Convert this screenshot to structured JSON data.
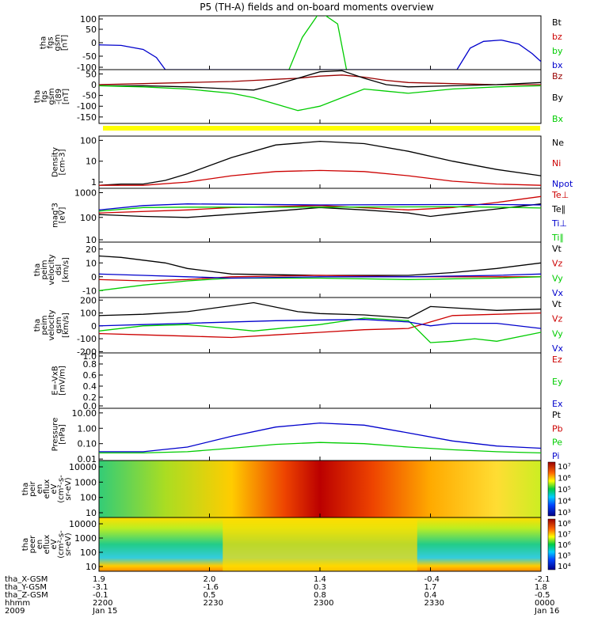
{
  "title": "P5 (TH-A) fields and on-board moments overview",
  "colors": {
    "black": "#000000",
    "red": "#cc0000",
    "darkred": "#990000",
    "green": "#00cc00",
    "blue": "#0000cc",
    "yellow": "#ffff00"
  },
  "chart_data": [
    {
      "type": "line",
      "panel_id": "fgs",
      "ylabel_lines": [
        "tha",
        "fgs",
        "gsm",
        "[nT]"
      ],
      "ylim": [
        -100,
        100
      ],
      "ticks": [
        "100",
        "50",
        "0",
        "-50",
        "-100"
      ],
      "tick_values": [
        100,
        50,
        0,
        -50,
        -100
      ],
      "series": [
        {
          "name": "Bt",
          "color": "#000000",
          "x": [],
          "y": []
        },
        {
          "name": "bz",
          "color": "#cc0000",
          "x": [],
          "y": []
        },
        {
          "name": "by",
          "color": "#00cc00",
          "x": [
            0.43,
            0.46,
            0.5,
            0.54,
            0.56
          ],
          "y": [
            -100,
            20,
            115,
            70,
            -100
          ]
        },
        {
          "name": "bx",
          "color": "#0000cc",
          "x": [
            0.0,
            0.05,
            0.1,
            0.13,
            0.15,
            0.81,
            0.84,
            0.87,
            0.91,
            0.95,
            0.98,
            1.0
          ],
          "y": [
            -8,
            -10,
            -25,
            -55,
            -100,
            -100,
            -20,
            5,
            10,
            -5,
            -40,
            -70
          ]
        }
      ]
    },
    {
      "type": "line",
      "panel_id": "fgs-dsl",
      "ylabel_lines": [
        "tha",
        "fgs",
        "gsm",
        "-(89",
        "[nT]"
      ],
      "ylim": [
        -180,
        70
      ],
      "ticks": [
        "50",
        "0",
        "-50",
        "-100",
        "-150"
      ],
      "tick_values": [
        50,
        0,
        -50,
        -100,
        -150
      ],
      "series": [
        {
          "name": "Bz",
          "color": "#990000",
          "x": [
            0.0,
            0.1,
            0.2,
            0.3,
            0.35,
            0.4,
            0.45,
            0.5,
            0.55,
            0.6,
            0.65,
            0.7,
            0.8,
            0.9,
            1.0
          ],
          "y": [
            0,
            5,
            10,
            15,
            20,
            25,
            30,
            40,
            45,
            35,
            20,
            10,
            5,
            0,
            0
          ]
        },
        {
          "name": "By",
          "color": "#000000",
          "x": [
            0.0,
            0.1,
            0.2,
            0.3,
            0.35,
            0.4,
            0.45,
            0.5,
            0.55,
            0.6,
            0.65,
            0.7,
            0.8,
            0.9,
            1.0
          ],
          "y": [
            -5,
            -5,
            -10,
            -20,
            -25,
            0,
            30,
            60,
            65,
            30,
            0,
            -10,
            -5,
            0,
            10
          ]
        },
        {
          "name": "Bx",
          "color": "#00cc00",
          "x": [
            0.0,
            0.1,
            0.2,
            0.3,
            0.35,
            0.4,
            0.45,
            0.5,
            0.55,
            0.6,
            0.65,
            0.7,
            0.8,
            0.9,
            1.0
          ],
          "y": [
            -5,
            -10,
            -20,
            -40,
            -60,
            -90,
            -120,
            -100,
            -60,
            -20,
            -30,
            -40,
            -20,
            -10,
            -5
          ]
        }
      ]
    },
    {
      "type": "line",
      "panel_id": "density",
      "log": true,
      "ylabel_lines": [
        "Density",
        "[cm-3]"
      ],
      "ylim": [
        0.5,
        160
      ],
      "ticks": [
        "100",
        "10",
        "1"
      ],
      "tick_values": [
        100,
        10,
        1
      ],
      "series": [
        {
          "name": "Ne",
          "color": "#000000",
          "x": [
            0.0,
            0.05,
            0.1,
            0.15,
            0.2,
            0.3,
            0.4,
            0.5,
            0.6,
            0.7,
            0.8,
            0.9,
            1.0
          ],
          "y": [
            0.7,
            0.8,
            0.8,
            1.2,
            2.5,
            15,
            60,
            90,
            70,
            30,
            10,
            4,
            2
          ]
        },
        {
          "name": "Ni",
          "color": "#cc0000",
          "x": [
            0.0,
            0.1,
            0.2,
            0.3,
            0.4,
            0.5,
            0.6,
            0.7,
            0.8,
            0.9,
            1.0
          ],
          "y": [
            0.7,
            0.7,
            1.0,
            2.0,
            3.2,
            3.6,
            3.2,
            2.0,
            1.1,
            0.8,
            0.7
          ]
        },
        {
          "name": "Npot",
          "color": "#0000cc",
          "x": [],
          "y": []
        }
      ]
    },
    {
      "type": "line",
      "panel_id": "temperature",
      "log": true,
      "ylabel_lines": [
        "mag3",
        "[eV]"
      ],
      "ylim": [
        10,
        1500
      ],
      "ticks": [
        "1000",
        "100",
        "10"
      ],
      "tick_values": [
        1000,
        100,
        10
      ],
      "series": [
        {
          "name": "Te⊥",
          "color": "#cc0000",
          "x": [
            0.0,
            0.2,
            0.3,
            0.5,
            0.7,
            0.8,
            0.9,
            1.0
          ],
          "y": [
            150,
            200,
            250,
            300,
            200,
            250,
            400,
            700
          ]
        },
        {
          "name": "Te∥",
          "color": "#000000",
          "x": [
            0.0,
            0.1,
            0.2,
            0.4,
            0.5,
            0.6,
            0.7,
            0.75,
            0.8,
            0.9,
            1.0
          ],
          "y": [
            130,
            110,
            100,
            180,
            250,
            200,
            150,
            110,
            140,
            220,
            350
          ]
        },
        {
          "name": "Ti⊥",
          "color": "#0000cc",
          "x": [
            0.0,
            0.1,
            0.2,
            0.5,
            0.8,
            0.9,
            1.0
          ],
          "y": [
            200,
            300,
            350,
            320,
            330,
            330,
            320
          ]
        },
        {
          "name": "Ti∥",
          "color": "#00cc00",
          "x": [
            0.0,
            0.1,
            0.2,
            0.5,
            0.8,
            0.9,
            1.0
          ],
          "y": [
            180,
            250,
            260,
            260,
            270,
            260,
            240
          ]
        }
      ]
    },
    {
      "type": "line",
      "panel_id": "peim-velocity-dsl",
      "ylabel_lines": [
        "tha",
        "peim",
        "velocity",
        "dsl",
        "[km/s]"
      ],
      "ylim": [
        -15,
        25
      ],
      "ticks": [
        "20",
        "10",
        "0",
        "-10"
      ],
      "tick_values": [
        20,
        10,
        0,
        -10
      ],
      "series": [
        {
          "name": "Vt",
          "color": "#000000",
          "x": [
            0.0,
            0.05,
            0.1,
            0.15,
            0.2,
            0.3,
            0.5,
            0.7,
            0.8,
            0.9,
            1.0
          ],
          "y": [
            15,
            14,
            12,
            10,
            6,
            2,
            1,
            1,
            3,
            6,
            10
          ]
        },
        {
          "name": "Vz",
          "color": "#cc0000",
          "x": [
            0.0,
            0.1,
            0.2,
            0.3,
            0.5,
            0.7,
            0.9,
            1.0
          ],
          "y": [
            -2,
            -3,
            -2,
            0,
            1,
            0,
            0,
            0
          ]
        },
        {
          "name": "Vy",
          "color": "#00cc00",
          "x": [
            0.0,
            0.1,
            0.2,
            0.3,
            0.5,
            0.7,
            0.9,
            1.0
          ],
          "y": [
            -10,
            -6,
            -3,
            -1,
            -1,
            -2,
            -1,
            0
          ]
        },
        {
          "name": "Vx",
          "color": "#0000cc",
          "x": [
            0.0,
            0.1,
            0.2,
            0.3,
            0.5,
            0.7,
            0.9,
            1.0
          ],
          "y": [
            2,
            1,
            0,
            -1,
            0,
            0,
            1,
            2
          ]
        }
      ]
    },
    {
      "type": "line",
      "panel_id": "peim-velocity-gsm",
      "ylabel_lines": [
        "tha",
        "peim",
        "velocity",
        "gsm",
        "[km/s]"
      ],
      "ylim": [
        -210,
        220
      ],
      "ticks": [
        "200",
        "100",
        "0",
        "-100",
        "-200"
      ],
      "tick_values": [
        200,
        100,
        0,
        -100,
        -200
      ],
      "series": [
        {
          "name": "Vt",
          "color": "#000000",
          "x": [
            0.0,
            0.1,
            0.2,
            0.35,
            0.45,
            0.5,
            0.6,
            0.7,
            0.75,
            0.8,
            0.9,
            1.0
          ],
          "y": [
            80,
            90,
            110,
            180,
            110,
            95,
            85,
            60,
            150,
            140,
            120,
            130
          ]
        },
        {
          "name": "Vz",
          "color": "#cc0000",
          "x": [
            0.0,
            0.1,
            0.2,
            0.3,
            0.4,
            0.5,
            0.6,
            0.7,
            0.75,
            0.8,
            0.9,
            1.0
          ],
          "y": [
            -60,
            -70,
            -80,
            -90,
            -70,
            -50,
            -30,
            -20,
            30,
            80,
            90,
            100
          ]
        },
        {
          "name": "Vy",
          "color": "#00cc00",
          "x": [
            0.0,
            0.1,
            0.2,
            0.35,
            0.5,
            0.6,
            0.7,
            0.75,
            0.8,
            0.85,
            0.9,
            1.0
          ],
          "y": [
            -40,
            0,
            10,
            -40,
            10,
            60,
            40,
            -130,
            -120,
            -100,
            -120,
            -50
          ]
        },
        {
          "name": "Vx",
          "color": "#0000cc",
          "x": [
            0.0,
            0.1,
            0.2,
            0.4,
            0.6,
            0.7,
            0.75,
            0.8,
            0.9,
            1.0
          ],
          "y": [
            0,
            10,
            20,
            40,
            50,
            30,
            0,
            20,
            20,
            -20
          ]
        }
      ]
    },
    {
      "type": "line",
      "panel_id": "efield",
      "ylabel_lines": [
        "E=-VxB",
        "[mV/m]"
      ],
      "ylim": [
        0,
        1
      ],
      "ticks": [
        "1.0",
        "0.8",
        "0.6",
        "0.4",
        "0.2",
        "0.0"
      ],
      "tick_values": [
        1.0,
        0.8,
        0.6,
        0.4,
        0.2,
        0.0
      ],
      "series": [
        {
          "name": "Ez",
          "color": "#cc0000",
          "x": [],
          "y": []
        },
        {
          "name": "Ey",
          "color": "#00cc00",
          "x": [],
          "y": []
        },
        {
          "name": "Ex",
          "color": "#0000cc",
          "x": [],
          "y": []
        }
      ]
    },
    {
      "type": "line",
      "panel_id": "pressure",
      "log": true,
      "ylabel_lines": [
        "Pressure",
        "[nPa]"
      ],
      "ylim": [
        0.008,
        20
      ],
      "ticks": [
        "10.00",
        "1.00",
        "0.10",
        "0.01"
      ],
      "tick_values": [
        10,
        1,
        0.1,
        0.01
      ],
      "series": [
        {
          "name": "Pt",
          "color": "#000000",
          "x": [],
          "y": []
        },
        {
          "name": "Pb",
          "color": "#cc0000",
          "x": [],
          "y": []
        },
        {
          "name": "Pe",
          "color": "#00cc00",
          "x": [
            0.0,
            0.1,
            0.2,
            0.3,
            0.4,
            0.5,
            0.6,
            0.7,
            0.8,
            0.9,
            1.0
          ],
          "y": [
            0.025,
            0.025,
            0.03,
            0.05,
            0.09,
            0.12,
            0.1,
            0.06,
            0.04,
            0.03,
            0.025
          ]
        },
        {
          "name": "Pi",
          "color": "#0000cc",
          "x": [
            0.0,
            0.1,
            0.2,
            0.3,
            0.4,
            0.5,
            0.6,
            0.7,
            0.8,
            0.9,
            1.0
          ],
          "y": [
            0.03,
            0.03,
            0.06,
            0.3,
            1.2,
            2.2,
            1.6,
            0.5,
            0.15,
            0.07,
            0.05
          ]
        }
      ]
    },
    {
      "type": "heatmap",
      "panel_id": "peir-eflux",
      "ylabel_lines": [
        "tha",
        "peir",
        "en",
        "eflux",
        "eV",
        "(cm²-s-",
        "sr-eV)"
      ],
      "ticks": [
        "10000",
        "1000",
        "100",
        "10"
      ],
      "tick_values": [
        10000,
        1000,
        100,
        10
      ],
      "colorbar_ticks": [
        "10⁷",
        "10⁶",
        "10⁵",
        "10⁴",
        "10³"
      ]
    },
    {
      "type": "heatmap",
      "panel_id": "peer-eflux",
      "ylabel_lines": [
        "tha",
        "peer",
        "en",
        "eflux",
        "eV",
        "(cm²-s-",
        "sr-eV)"
      ],
      "ticks": [
        "10000",
        "1000",
        "100",
        "10"
      ],
      "tick_values": [
        10000,
        1000,
        100,
        10
      ],
      "colorbar_ticks": [
        "10⁸",
        "10⁷",
        "10⁶",
        "10⁵",
        "10⁴"
      ]
    }
  ],
  "ephemeris": {
    "row_labels": [
      "tha_X-GSM",
      "tha_Y-GSM",
      "tha_Z-GSM",
      "hhmm",
      "2009"
    ],
    "columns": [
      {
        "x": [
          "1.9",
          "-3.1",
          "-0.1",
          "2200",
          "Jan 15"
        ]
      },
      {
        "x": [
          "2.0",
          "-1.6",
          "0.5",
          "2230",
          ""
        ]
      },
      {
        "x": [
          "1.4",
          "0.3",
          "0.8",
          "2300",
          ""
        ]
      },
      {
        "x": [
          "-0.4",
          "1.7",
          "0.4",
          "2330",
          ""
        ]
      },
      {
        "x": [
          "-2.1",
          "1.8",
          "-0.5",
          "0000",
          "Jan 16"
        ]
      }
    ]
  }
}
